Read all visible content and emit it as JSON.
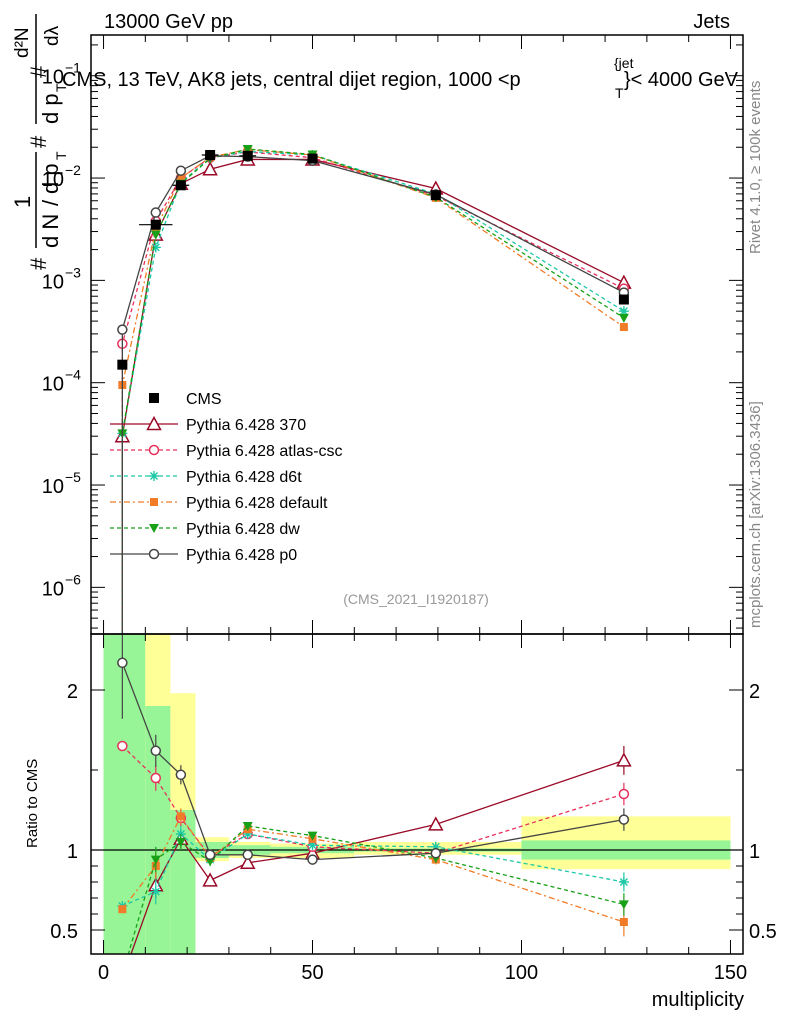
{
  "header": {
    "left": "13000 GeV pp",
    "right": "Jets"
  },
  "side_labels": {
    "rivet": "Rivet 4.1.0, ≥ 100k events",
    "mcplots": "mcplots.cern.ch [arXiv:1306.3436]"
  },
  "watermark": "(CMS_2021_I1920187)",
  "ylabel_main": {
    "hash1": "#",
    "one": "1",
    "dN": "d N",
    "slash": "/",
    "dp": "d p",
    "T": "T",
    "hash2": "#",
    "dp2": "d p",
    "T2": "T",
    "hash3": "#",
    "d2N": "d²N",
    "dlambda": "dλ"
  },
  "chart_data": {
    "type": "line",
    "title": "CMS, 13 TeV, AK8 jets, central dijet region, 1000 <p",
    "title_sub": "T",
    "title_sup": "{jet",
    "title_tail": "}< 4000 GeV",
    "xlabel": "multiplicity",
    "ylabel_ratio": "Ratio to CMS",
    "xlim": [
      -3,
      153
    ],
    "ylim_main": [
      3.5e-07,
      0.25
    ],
    "ylim_ratio": [
      0.35,
      2.35
    ],
    "x_ticks": [
      0,
      50,
      100,
      150
    ],
    "x_tick_labels": [
      "0",
      "50",
      "100",
      "150"
    ],
    "y_ticks_main": [
      1e-06,
      1e-05,
      0.0001,
      0.001,
      0.01,
      0.1
    ],
    "y_tick_labels_main": [
      {
        "base": "10",
        "exp": "−6"
      },
      {
        "base": "10",
        "exp": "−5"
      },
      {
        "base": "10",
        "exp": "−4"
      },
      {
        "base": "10",
        "exp": "−3"
      },
      {
        "base": "10",
        "exp": "−2"
      },
      {
        "base": "10",
        "exp": "−1"
      }
    ],
    "y_ticks_ratio": [
      0.5,
      1,
      2
    ],
    "y_tick_labels_ratio": [
      "0.5",
      "1",
      "2"
    ],
    "data": {
      "name": "CMS",
      "color": "#000000",
      "x": [
        4.5,
        12.5,
        18.5,
        25.5,
        34.5,
        50,
        79.5,
        124.5
      ],
      "y": [
        0.00015,
        0.0035,
        0.0085,
        0.0168,
        0.0165,
        0.0155,
        0.0068,
        0.00065
      ],
      "xerr": [
        0,
        4,
        2,
        2,
        2,
        0,
        0,
        0
      ]
    },
    "bands": {
      "edges": [
        0,
        10,
        16,
        22,
        30,
        40,
        60,
        100,
        150
      ],
      "green": [
        [
          0.3,
          2.4
        ],
        [
          0.35,
          1.9
        ],
        [
          0.3,
          1.25
        ],
        [
          0.95,
          1.05
        ],
        [
          0.97,
          1.03
        ],
        [
          0.98,
          1.02
        ],
        [
          0.99,
          1.01
        ],
        [
          0.94,
          1.06
        ]
      ],
      "yellow": [
        [
          0.3,
          2.4
        ],
        [
          0.3,
          2.4
        ],
        [
          0.3,
          1.98
        ],
        [
          0.93,
          1.08
        ],
        [
          0.95,
          1.05
        ],
        [
          0.95,
          1.04
        ],
        [
          0.97,
          1.05
        ],
        [
          0.88,
          1.21
        ]
      ],
      "green_color": "#97f597",
      "yellow_color": "#ffff97"
    },
    "series": [
      {
        "name": "Pythia 6.428 370",
        "color": "#9a0a28",
        "dash": "",
        "marker": "open-triangle",
        "x": [
          4.5,
          12.5,
          18.5,
          25.5,
          34.5,
          50,
          79.5,
          124.5
        ],
        "y": [
          3e-05,
          0.0028,
          0.0088,
          0.0122,
          0.0152,
          0.0152,
          0.0079,
          0.00095
        ],
        "ratio": [
          0.2,
          0.78,
          1.07,
          0.81,
          0.92,
          0.98,
          1.16,
          1.56
        ],
        "ratio_err": [
          0,
          0.08,
          0.06,
          0.03,
          0.02,
          0.02,
          0.03,
          0.09
        ]
      },
      {
        "name": "Pythia 6.428 atlas-csc",
        "color": "#e8305c",
        "dash": "4,3",
        "marker": "open-circle",
        "x": [
          4.5,
          12.5,
          18.5,
          25.5,
          34.5,
          50,
          79.5,
          124.5
        ],
        "y": [
          0.00024,
          0.0038,
          0.01,
          0.0158,
          0.018,
          0.0158,
          0.0067,
          0.00083
        ],
        "ratio": [
          1.65,
          1.45,
          1.2,
          0.96,
          1.1,
          1.02,
          0.98,
          1.35
        ],
        "ratio_err": [
          0,
          0.08,
          0.05,
          0.03,
          0.02,
          0.02,
          0.03,
          0.07
        ]
      },
      {
        "name": "Pythia 6.428 d6t",
        "color": "#1dc8a6",
        "dash": "4,3",
        "marker": "star",
        "x": [
          4.5,
          12.5,
          18.5,
          25.5,
          34.5,
          50,
          79.5,
          124.5
        ],
        "y": [
          3.2e-05,
          0.0021,
          0.009,
          0.0158,
          0.0182,
          0.0168,
          0.007,
          0.0005
        ],
        "ratio": [
          0.65,
          0.74,
          1.1,
          0.94,
          1.1,
          1.03,
          1.02,
          0.8
        ],
        "ratio_err": [
          0,
          0.08,
          0.05,
          0.03,
          0.02,
          0.02,
          0.03,
          0.06
        ]
      },
      {
        "name": "Pythia 6.428 default",
        "color": "#f07c28",
        "dash": "6,3,2,3",
        "marker": "square",
        "x": [
          4.5,
          12.5,
          18.5,
          25.5,
          34.5,
          50,
          79.5,
          124.5
        ],
        "y": [
          9.5e-05,
          0.0032,
          0.01,
          0.016,
          0.019,
          0.0168,
          0.0064,
          0.00035
        ],
        "ratio": [
          0.63,
          0.9,
          1.21,
          0.95,
          1.13,
          1.07,
          0.94,
          0.55
        ],
        "ratio_err": [
          0,
          0.08,
          0.05,
          0.03,
          0.02,
          0.02,
          0.03,
          0.09
        ]
      },
      {
        "name": "Pythia 6.428 dw",
        "color": "#18a018",
        "dash": "4,3",
        "marker": "triangle-down",
        "x": [
          4.5,
          12.5,
          18.5,
          25.5,
          34.5,
          50,
          79.5,
          124.5
        ],
        "y": [
          3.2e-05,
          0.0028,
          0.0088,
          0.0155,
          0.0192,
          0.017,
          0.0065,
          0.00043
        ],
        "ratio": [
          0.22,
          0.94,
          1.05,
          0.93,
          1.15,
          1.09,
          0.95,
          0.66
        ],
        "ratio_err": [
          0,
          0.08,
          0.05,
          0.03,
          0.02,
          0.02,
          0.03,
          0.07
        ]
      },
      {
        "name": "Pythia 6.428 p0",
        "color": "#444444",
        "dash": "",
        "marker": "open-circle",
        "x": [
          4.5,
          12.5,
          18.5,
          25.5,
          34.5,
          50,
          79.5,
          124.5
        ],
        "y": [
          0.00033,
          0.0046,
          0.0118,
          0.0165,
          0.0162,
          0.0148,
          0.0069,
          0.00076
        ],
        "ratio": [
          2.17,
          1.62,
          1.47,
          0.97,
          0.97,
          0.94,
          0.98,
          1.19
        ],
        "ratio_err": [
          0.35,
          0.1,
          0.06,
          0.03,
          0.02,
          0.02,
          0.03,
          0.07
        ]
      }
    ]
  }
}
